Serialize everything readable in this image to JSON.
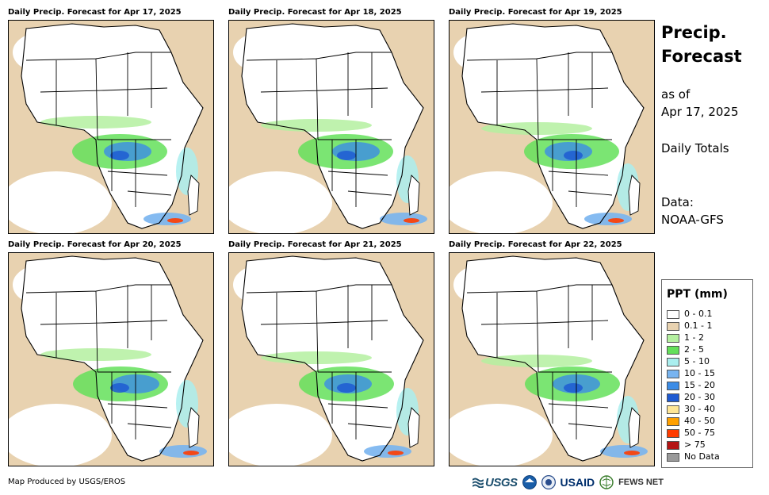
{
  "panels": [
    {
      "title": "Daily Precip. Forecast for Apr 17, 2025"
    },
    {
      "title": "Daily Precip. Forecast for Apr 18, 2025"
    },
    {
      "title": "Daily Precip. Forecast for Apr 19, 2025"
    },
    {
      "title": "Daily Precip. Forecast for Apr 20, 2025"
    },
    {
      "title": "Daily Precip. Forecast for Apr 21, 2025"
    },
    {
      "title": "Daily Precip. Forecast for Apr 22, 2025"
    }
  ],
  "side": {
    "title_line1": "Precip.",
    "title_line2": "Forecast",
    "asof_line1": "as of",
    "asof_line2": "Apr 17, 2025",
    "totals": "Daily Totals",
    "data_line1": "Data:",
    "data_line2": "NOAA-GFS"
  },
  "legend": {
    "title": "PPT (mm)",
    "items": [
      {
        "label": "0 - 0.1",
        "color": "#ffffff"
      },
      {
        "label": "0.1 - 1",
        "color": "#e8d2b0"
      },
      {
        "label": "1 - 2",
        "color": "#b4f0a0"
      },
      {
        "label": "2 - 5",
        "color": "#64e05a"
      },
      {
        "label": "5 - 10",
        "color": "#aaeeee"
      },
      {
        "label": "10 - 15",
        "color": "#78b4f0"
      },
      {
        "label": "15 - 20",
        "color": "#3c8ce6"
      },
      {
        "label": "20 - 30",
        "color": "#1e5ad2"
      },
      {
        "label": "30 - 40",
        "color": "#ffe696"
      },
      {
        "label": "40 - 50",
        "color": "#ffa000"
      },
      {
        "label": "50 - 75",
        "color": "#ff3c00"
      },
      {
        "label": "> 75",
        "color": "#b41414"
      },
      {
        "label": "No Data",
        "color": "#999999"
      }
    ]
  },
  "footer": {
    "credit": "Map Produced by USGS/EROS",
    "logo_usgs": "USGS",
    "logo_usaid": "USAID",
    "logo_fews": "FEWS NET"
  }
}
